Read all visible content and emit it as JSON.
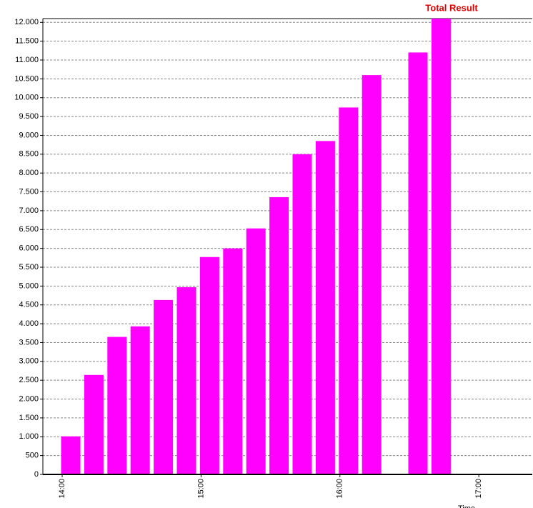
{
  "chart_data": {
    "type": "bar",
    "x_label": "Time",
    "categories": [
      "14:00",
      null,
      null,
      null,
      null,
      null,
      "15:00",
      null,
      null,
      null,
      null,
      null,
      "16:00",
      null,
      null,
      null,
      null,
      null,
      "17:00",
      null
    ],
    "series": [
      {
        "name": "Total Result",
        "color": "#ff00ff",
        "values": [
          1010,
          2640,
          3650,
          3930,
          4630,
          4970,
          5770,
          6000,
          6530,
          7360,
          8500,
          8850,
          9740,
          10600,
          null,
          11200,
          12100,
          null,
          null,
          null
        ]
      }
    ],
    "legend_color": "#e00000",
    "ylim": [
      0,
      12100
    ],
    "yticks": [
      0,
      500,
      {
        "value": 1000,
        "label": "1.000"
      },
      {
        "value": 1500,
        "label": "1.500"
      },
      {
        "value": 2000,
        "label": "2.000"
      },
      {
        "value": 2500,
        "label": "2.500"
      },
      {
        "value": 3000,
        "label": "3.000"
      },
      {
        "value": 3500,
        "label": "3.500"
      },
      {
        "value": 4000,
        "label": "4.000"
      },
      {
        "value": 4500,
        "label": "4.500"
      },
      {
        "value": 5000,
        "label": "5.000"
      },
      {
        "value": 5500,
        "label": "5.500"
      },
      {
        "value": 6000,
        "label": "6.000"
      },
      {
        "value": 6500,
        "label": "6.500"
      },
      {
        "value": 7000,
        "label": "7.000"
      },
      {
        "value": 7500,
        "label": "7.500"
      },
      {
        "value": 8000,
        "label": "8.000"
      },
      {
        "value": 8500,
        "label": "8.500"
      },
      {
        "value": 9000,
        "label": "9.000"
      },
      {
        "value": 9500,
        "label": "9.500"
      },
      {
        "value": 10000,
        "label": "10.000"
      },
      {
        "value": 10500,
        "label": "10.500"
      },
      {
        "value": 11000,
        "label": "11.000"
      },
      {
        "value": 11500,
        "label": "11.500"
      },
      {
        "value": 12000,
        "label": "12.000"
      }
    ],
    "grid": true
  }
}
